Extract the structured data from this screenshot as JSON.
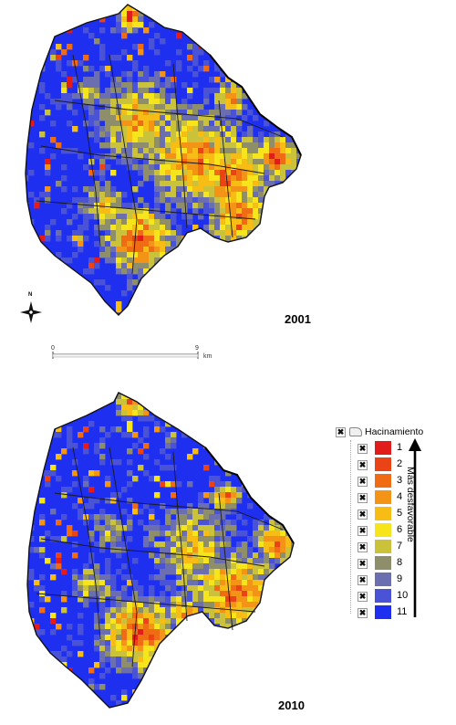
{
  "maps": [
    {
      "year": "2001"
    },
    {
      "year": "2010"
    }
  ],
  "scale_bar": {
    "start": "0",
    "end": "9",
    "unit": "km"
  },
  "north_arrow": {
    "label": "N",
    "icon": "north-arrow-icon"
  },
  "legend": {
    "title": "Hacinamiento",
    "direction_label": "Más desfavorable",
    "classes": [
      {
        "label": "1",
        "color": "#e21b1b"
      },
      {
        "label": "2",
        "color": "#ea4416"
      },
      {
        "label": "3",
        "color": "#ef6c14"
      },
      {
        "label": "4",
        "color": "#f39417"
      },
      {
        "label": "5",
        "color": "#f7bd15"
      },
      {
        "label": "6",
        "color": "#f7e51c"
      },
      {
        "label": "7",
        "color": "#c9c23a"
      },
      {
        "label": "8",
        "color": "#8e8e6a"
      },
      {
        "label": "9",
        "color": "#6b6fb0"
      },
      {
        "label": "10",
        "color": "#4a52d6"
      },
      {
        "label": "11",
        "color": "#1f2ff0"
      }
    ]
  },
  "colors": {
    "base_blue": "#1f2ff0",
    "boundary": "#111111"
  }
}
